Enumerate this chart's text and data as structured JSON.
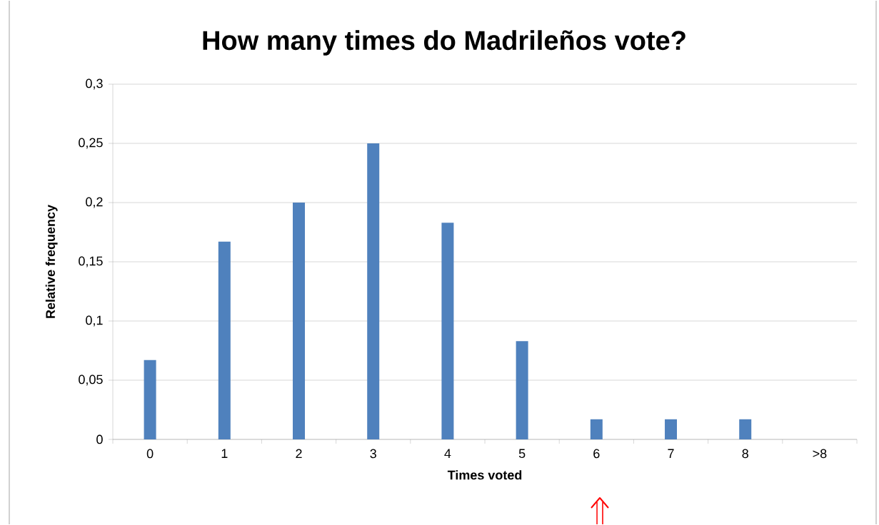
{
  "chart_data": {
    "type": "bar",
    "title": "How many times do Madrileños vote?",
    "xlabel": "Times voted",
    "ylabel": "Relative frequency",
    "categories": [
      "0",
      "1",
      "2",
      "3",
      "4",
      "5",
      "6",
      "7",
      "8",
      ">8"
    ],
    "values": [
      0.067,
      0.167,
      0.2,
      0.25,
      0.183,
      0.083,
      0.017,
      0.017,
      0.017,
      0
    ],
    "color": "#4f81bd",
    "ylim": [
      0,
      0.3
    ],
    "yticks": [
      0,
      {
        "value": 0.05,
        "label": "0,05"
      },
      {
        "value": 0.1,
        "label": "0,1"
      },
      {
        "value": 0.15,
        "label": "0,15"
      },
      {
        "value": 0.2,
        "label": "0,2"
      },
      {
        "value": 0.25,
        "label": "0,25"
      },
      {
        "value": 0.3,
        "label": "0,3"
      }
    ],
    "grid": "y"
  }
}
